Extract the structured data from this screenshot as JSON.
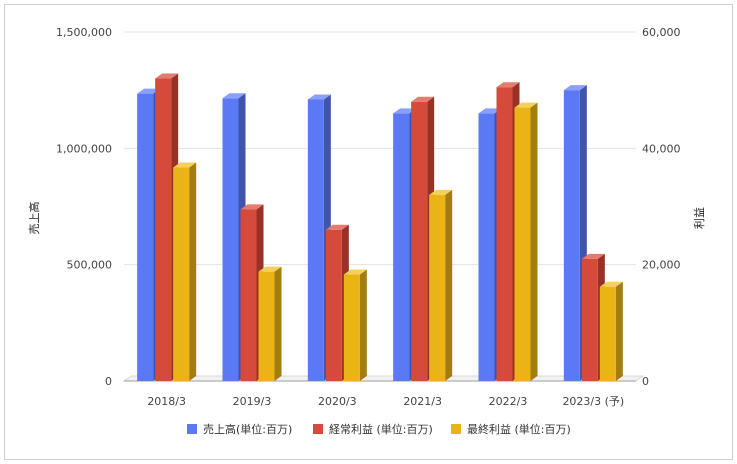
{
  "chart_data": {
    "type": "bar",
    "categories": [
      "2018/3",
      "2019/3",
      "2020/3",
      "2021/3",
      "2022/3",
      "2023/3 (予)"
    ],
    "left_axis": {
      "label": "売上高",
      "ylim": [
        0,
        1500000
      ],
      "ticks": [
        0,
        500000,
        1000000,
        1500000
      ],
      "tick_labels": [
        "0",
        "500,000",
        "1,000,000",
        "1,500,000"
      ]
    },
    "right_axis": {
      "label": "利益",
      "ylim": [
        0,
        60000
      ],
      "ticks": [
        0,
        20000,
        40000,
        60000
      ],
      "tick_labels": [
        "0",
        "20,000",
        "40,000",
        "60,000"
      ]
    },
    "series": [
      {
        "name": "売上高(単位:百万)",
        "axis": "left",
        "color": "#5b79f5",
        "side": "#3f54aa",
        "top": "#8aa0ff",
        "values": [
          1235000,
          1215000,
          1210000,
          1150000,
          1150000,
          1250000
        ]
      },
      {
        "name": "経常利益 (単位:百万)",
        "axis": "right",
        "color": "#d64a3c",
        "side": "#983126",
        "top": "#e57a6e",
        "values": [
          52000,
          29500,
          26000,
          48000,
          50500,
          21000
        ]
      },
      {
        "name": "最終利益 (単位:百万)",
        "axis": "right",
        "color": "#eab417",
        "side": "#a37d10",
        "top": "#f4cf5a",
        "values": [
          36700,
          18800,
          18300,
          32000,
          47000,
          16200
        ]
      }
    ],
    "grid": true,
    "legend_position": "bottom"
  }
}
